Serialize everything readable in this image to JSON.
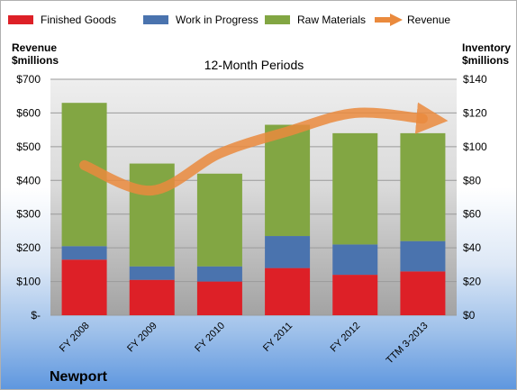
{
  "chart_data": {
    "type": "bar",
    "stacked": true,
    "title": "12-Month Periods",
    "company": "Newport",
    "left_axis_title": [
      "Revenue",
      "$millions"
    ],
    "right_axis_title": [
      "Inventory",
      "$millions"
    ],
    "categories": [
      "FY 2008",
      "FY 2009",
      "FY 2010",
      "FY 2011",
      "FY 2012",
      "TTM 3-2013"
    ],
    "series": [
      {
        "name": "Finished Goods",
        "axis": "right",
        "color": "#dd2027",
        "values": [
          33,
          21,
          20,
          28,
          24,
          26
        ]
      },
      {
        "name": "Work in Progress",
        "axis": "right",
        "color": "#4a73ae",
        "values": [
          8,
          8,
          9,
          19,
          18,
          18
        ]
      },
      {
        "name": "Raw Materials",
        "axis": "right",
        "color": "#82a643",
        "values": [
          85,
          61,
          55,
          66,
          66,
          64
        ]
      }
    ],
    "line_series": {
      "name": "Revenue",
      "axis": "left",
      "color": "#ea8a3d",
      "values": [
        445,
        370,
        480,
        545,
        600,
        583
      ]
    },
    "left_axis": {
      "min": 0,
      "max": 700,
      "step": 100,
      "ticks": [
        "$-",
        "$100",
        "$200",
        "$300",
        "$400",
        "$500",
        "$600",
        "$700"
      ]
    },
    "right_axis": {
      "min": 0,
      "max": 140,
      "step": 20,
      "ticks": [
        "$0",
        "$20",
        "$40",
        "$60",
        "$80",
        "$100",
        "$120",
        "$140"
      ]
    },
    "grid": true,
    "legend_position": "top"
  }
}
